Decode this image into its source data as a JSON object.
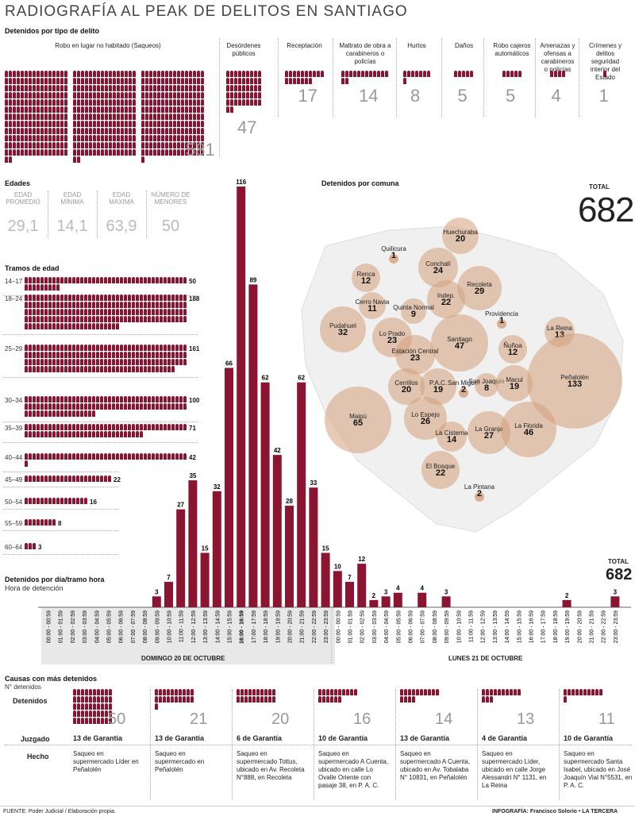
{
  "title": "RADIOGRAFÍA AL PEAK DE DELITOS EN SANTIAGO",
  "crime_section_title": "Detenidos por tipo de delito",
  "crime_types": [
    {
      "label": "Robo en lugar no habitado (Saqueos)",
      "value": "581"
    },
    {
      "label": "Desórdenes públicos",
      "value": "47"
    },
    {
      "label": "Receptación",
      "value": "17"
    },
    {
      "label": "Maltrato de obra a carabineros o policías",
      "value": "14"
    },
    {
      "label": "Hurtos",
      "value": "8"
    },
    {
      "label": "Daños",
      "value": "5"
    },
    {
      "label": "Robo cajeros automáticos",
      "value": "5"
    },
    {
      "label": "Amenazas y ofensas a carabineros o policías",
      "value": "4"
    },
    {
      "label": "Crímenes y delitos seguridad interior del Estado",
      "value": "1"
    }
  ],
  "ages_title": "Edades",
  "age_stats": [
    {
      "label": "EDAD PROMEDIO",
      "value": "29,1"
    },
    {
      "label": "EDAD MÍNIMA",
      "value": "14,1"
    },
    {
      "label": "EDAD MÁXIMA",
      "value": "63,9"
    },
    {
      "label": "NÚMERO DE MENORES",
      "value": "50"
    }
  ],
  "age_ranges_title": "Tramos de edad",
  "age_ranges": [
    {
      "label": "14–17",
      "value": "50",
      "n": 50
    },
    {
      "label": "18–24",
      "value": "188",
      "n": 188
    },
    {
      "label": "25–29",
      "value": "161",
      "n": 161
    },
    {
      "label": "30–34",
      "value": "100",
      "n": 100
    },
    {
      "label": "35–39",
      "value": "71",
      "n": 71
    },
    {
      "label": "40–44",
      "value": "42",
      "n": 42
    },
    {
      "label": "45–49",
      "value": "22",
      "n": 22
    },
    {
      "label": "50–54",
      "value": "16",
      "n": 16
    },
    {
      "label": "55–59",
      "value": "8",
      "n": 8
    },
    {
      "label": "60–64",
      "value": "3",
      "n": 3
    }
  ],
  "comuna_title": "Detenidos por comuna",
  "total_label": "TOTAL",
  "total_value": "682",
  "comunas": [
    {
      "name": "Huechuraba",
      "value": "20",
      "n": 20
    },
    {
      "name": "Quilicura",
      "value": "1",
      "n": 1
    },
    {
      "name": "Conchalí",
      "value": "24",
      "n": 24
    },
    {
      "name": "Renca",
      "value": "12",
      "n": 12
    },
    {
      "name": "Recoleta",
      "value": "29",
      "n": 29
    },
    {
      "name": "Indep.",
      "value": "22",
      "n": 22
    },
    {
      "name": "Cerro Navia",
      "value": "11",
      "n": 11
    },
    {
      "name": "Quinta Normal",
      "value": "9",
      "n": 9
    },
    {
      "name": "Providencia",
      "value": "1",
      "n": 1
    },
    {
      "name": "Pudahuel",
      "value": "32",
      "n": 32
    },
    {
      "name": "Lo Prado",
      "value": "23",
      "n": 23
    },
    {
      "name": "Santiago",
      "value": "47",
      "n": 47
    },
    {
      "name": "La Reina",
      "value": "13",
      "n": 13
    },
    {
      "name": "Estación Central",
      "value": "23",
      "n": 23
    },
    {
      "name": "Ñuñoa",
      "value": "12",
      "n": 12
    },
    {
      "name": "Cerrillos",
      "value": "20",
      "n": 20
    },
    {
      "name": "P.A.C.",
      "value": "19",
      "n": 19
    },
    {
      "name": "San Miguel",
      "value": "2",
      "n": 2
    },
    {
      "name": "San Joaquín",
      "value": "8",
      "n": 8
    },
    {
      "name": "Macul",
      "value": "19",
      "n": 19
    },
    {
      "name": "Peñalolén",
      "value": "133",
      "n": 133
    },
    {
      "name": "Maipú",
      "value": "65",
      "n": 65
    },
    {
      "name": "Lo Espejo",
      "value": "26",
      "n": 26
    },
    {
      "name": "La Cisterna",
      "value": "14",
      "n": 14
    },
    {
      "name": "La Granja",
      "value": "27",
      "n": 27
    },
    {
      "name": "La Florida",
      "value": "46",
      "n": 46
    },
    {
      "name": "El Bosque",
      "value": "22",
      "n": 22
    },
    {
      "name": "La Pintana",
      "value": "2",
      "n": 2
    }
  ],
  "hourly_title": "Detenidos por día/tramo hora",
  "hourly_subtitle": "Hora de detención",
  "hourly_total_label": "TOTAL",
  "hourly_total_value": "682",
  "day1_label": "DOMINGO 20 DE OCTUBRE",
  "day2_label": "LUNES 21 DE OCTUBRE",
  "chart_data": {
    "type": "bar",
    "title": "Detenidos por día/tramo hora",
    "xlabel": "Hora de detención",
    "categories": [
      "00:00 - 00:59",
      "01:00 - 01:59",
      "02:00 - 02:59",
      "03:00 - 03:59",
      "04:00 - 04:59",
      "05:00 - 05:59",
      "06:00 - 06:59",
      "07:00 - 07:59",
      "08:00 - 08:59",
      "09:00 - 09:59",
      "10:00 - 10:59",
      "11:00 - 11:59",
      "12:00 - 12:59",
      "13:00 - 13:59",
      "14:00 - 14:59",
      "15:00 - 15:59",
      "16:00 - 16:59",
      "17:00 - 17:59",
      "18:00 - 18:59",
      "19:00 - 19:59",
      "20:00 - 20:59",
      "21:00 - 21:59",
      "22:00 - 22:59",
      "23:00 - 23:59",
      "00:00 - 00:59",
      "01:00 - 01:59",
      "02:00 - 02:59",
      "03:00 - 03:59",
      "04:00 - 04:59",
      "05:00 - 05:59",
      "06:00 - 06:59",
      "07:00 - 07:59",
      "08:00 - 08:59",
      "09:00 - 09:59",
      "10:00 - 10:59",
      "11:00 - 11:59",
      "12:00 - 12:59",
      "13:00 - 13:59",
      "14:00 - 14:59",
      "15:00 - 15:59",
      "16:00 - 16:59",
      "17:00 - 17:59",
      "18:00 - 18:59",
      "19:00 - 19:59",
      "20:00 - 20:59",
      "21:00 - 21:59",
      "22:00 - 22:59",
      "23:00 - 23:59"
    ],
    "values": [
      0,
      0,
      0,
      0,
      0,
      0,
      0,
      0,
      0,
      3,
      7,
      27,
      35,
      15,
      32,
      66,
      116,
      89,
      62,
      42,
      28,
      62,
      33,
      15,
      10,
      7,
      12,
      2,
      3,
      4,
      0,
      4,
      0,
      3,
      0,
      0,
      0,
      0,
      0,
      0,
      0,
      0,
      0,
      2,
      0,
      0,
      0,
      3
    ],
    "ylim": [
      0,
      116
    ],
    "highlight_category_index": 16
  },
  "causas_title": "Causas con más detenidos",
  "causas_subtitle": "N° detenidos",
  "row_labels": {
    "detenidos": "Detenidos",
    "juzgado": "Juzgado",
    "hecho": "Hecho"
  },
  "causas": [
    {
      "n": 50,
      "value": "50",
      "juzgado": "13 de Garantía",
      "hecho": "Saqueo en supermercado Líder en Peñalolén"
    },
    {
      "n": 21,
      "value": "21",
      "juzgado": "13 de Garantía",
      "hecho": "Saqueo en supermercado en Peñalolén"
    },
    {
      "n": 20,
      "value": "20",
      "juzgado": "6 de Garantía",
      "hecho": "Saqueo en supermercado Tottus, ubicado en Av. Recoleta N°888, en Recoleta"
    },
    {
      "n": 16,
      "value": "16",
      "juzgado": "10 de Garantía",
      "hecho": "Saqueo en supermercado A Cuenta, ubicado en calle Lo Ovalle Oriente con pasaje 38, en P. A. C."
    },
    {
      "n": 14,
      "value": "14",
      "juzgado": "13 de Garantía",
      "hecho": "Saqueo en supermercado A Cuenta, ubicado en Av. Tobalaba N° 10831, en Peñalolén"
    },
    {
      "n": 13,
      "value": "13",
      "juzgado": "4 de Garantía",
      "hecho": "Saqueo en supermercado Líder, ubicado en calle Jorge Alessandri N° 1131, en La Reina"
    },
    {
      "n": 11,
      "value": "11",
      "juzgado": "10 de Garantía",
      "hecho": "Saqueo en supermercado Santa Isabel, ubicado en José Joaquín Vial N°5531, en P. A. C."
    }
  ],
  "footer_left": "FUENTE: Poder Judicial / Elaboración propia.",
  "footer_right": "INFOGRAFÍA: Francisco Solorio • LA TERCERA",
  "colors": {
    "accent": "#8b1530",
    "circle": "#d5a07c",
    "muted": "#999999"
  }
}
